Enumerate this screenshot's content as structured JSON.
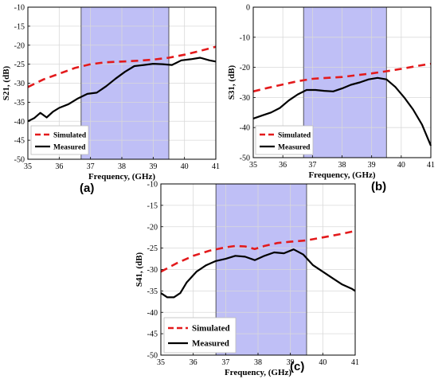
{
  "colors": {
    "simulated": "#e31a1c",
    "measured": "#000000",
    "band": "#b8b8f5",
    "grid": "#d9d9d9"
  },
  "panel_labels": [
    "(a)",
    "(b)",
    "(c)"
  ],
  "chart_data": [
    {
      "type": "line",
      "panel": "(a)",
      "title": "",
      "xlabel": "Frequency, (GHz)",
      "ylabel": "S21, (dB)",
      "xlim": [
        35,
        41
      ],
      "ylim": [
        -50,
        -10
      ],
      "xticks": [
        "35",
        "36",
        "37",
        "38",
        "39",
        "40",
        "41"
      ],
      "yticks": [
        "-10",
        "-15",
        "-20",
        "-25",
        "-30",
        "-35",
        "-40",
        "-45",
        "-50"
      ],
      "grid": true,
      "legend": "bottom-left",
      "band": [
        36.7,
        39.5
      ],
      "series": [
        {
          "name": "Simulated",
          "style": "dashed",
          "x": [
            35,
            35.5,
            36,
            36.5,
            37,
            37.5,
            38,
            38.5,
            39,
            39.5,
            40,
            40.5,
            41
          ],
          "y": [
            -31,
            -29,
            -27.5,
            -26,
            -25,
            -24.5,
            -24.3,
            -24.1,
            -23.8,
            -23.3,
            -22.5,
            -21.5,
            -20.4
          ]
        },
        {
          "name": "Measured",
          "style": "solid",
          "x": [
            35,
            35.2,
            35.4,
            35.6,
            35.8,
            36,
            36.3,
            36.6,
            36.9,
            37.2,
            37.5,
            37.8,
            38.1,
            38.4,
            38.7,
            39,
            39.3,
            39.6,
            39.9,
            40.2,
            40.5,
            40.8,
            41
          ],
          "y": [
            -40,
            -39.2,
            -37.8,
            -39,
            -37.5,
            -36.5,
            -35.5,
            -34,
            -32.8,
            -32.5,
            -30.8,
            -28.8,
            -27,
            -25.5,
            -25.2,
            -24.9,
            -25,
            -25.2,
            -24,
            -23.7,
            -23.3,
            -24,
            -24.3
          ]
        }
      ]
    },
    {
      "type": "line",
      "panel": "(b)",
      "title": "",
      "xlabel": "Frequency, (GHz)",
      "ylabel": "S31, (dB)",
      "xlim": [
        35,
        41
      ],
      "ylim": [
        -50,
        0
      ],
      "xticks": [
        "35",
        "36",
        "37",
        "38",
        "39",
        "40",
        "41"
      ],
      "yticks": [
        "0",
        "-10",
        "-20",
        "-30",
        "-40",
        "-50"
      ],
      "grid": true,
      "legend": "bottom-left",
      "band": [
        36.7,
        39.5
      ],
      "series": [
        {
          "name": "Simulated",
          "style": "dashed",
          "x": [
            35,
            35.5,
            36,
            36.5,
            37,
            37.5,
            38,
            38.5,
            39,
            39.5,
            40,
            40.5,
            41
          ],
          "y": [
            -28,
            -26.8,
            -25.7,
            -24.6,
            -23.8,
            -23.5,
            -23.2,
            -22.6,
            -22,
            -21.3,
            -20.5,
            -19.6,
            -18.8
          ]
        },
        {
          "name": "Measured",
          "style": "solid",
          "x": [
            35,
            35.3,
            35.6,
            35.9,
            36.2,
            36.5,
            36.8,
            37.1,
            37.4,
            37.7,
            38,
            38.3,
            38.6,
            38.9,
            39.2,
            39.5,
            39.8,
            40.1,
            40.4,
            40.7,
            41
          ],
          "y": [
            -37,
            -36,
            -35,
            -33.5,
            -31,
            -29,
            -27.5,
            -27.5,
            -27.8,
            -28,
            -27,
            -25.8,
            -25,
            -24,
            -23.5,
            -24,
            -26.5,
            -30,
            -34,
            -39,
            -46
          ]
        }
      ]
    },
    {
      "type": "line",
      "panel": "(c)",
      "title": "",
      "xlabel": "Frequency, (GHz)",
      "ylabel": "S41, (dB)",
      "xlim": [
        35,
        41
      ],
      "ylim": [
        -50,
        -10
      ],
      "xticks": [
        "35",
        "36",
        "37",
        "38",
        "39",
        "40",
        "41"
      ],
      "yticks": [
        "-10",
        "-15",
        "-20",
        "-25",
        "-30",
        "-35",
        "-40",
        "-45",
        "-50"
      ],
      "grid": true,
      "legend": "bottom-left",
      "band": [
        36.7,
        39.5
      ],
      "series": [
        {
          "name": "Simulated",
          "style": "dashed",
          "x": [
            35,
            35.5,
            36,
            36.5,
            37,
            37.3,
            37.6,
            37.9,
            38.2,
            38.6,
            39,
            39.5,
            40,
            40.5,
            41
          ],
          "y": [
            -30.5,
            -28.5,
            -26.8,
            -25.6,
            -24.8,
            -24.5,
            -24.6,
            -25.2,
            -24.5,
            -23.8,
            -23.5,
            -23.2,
            -22.5,
            -21.8,
            -21
          ]
        },
        {
          "name": "Measured",
          "style": "solid",
          "x": [
            35,
            35.2,
            35.4,
            35.6,
            35.8,
            36.1,
            36.4,
            36.7,
            37,
            37.3,
            37.6,
            37.9,
            38.2,
            38.5,
            38.8,
            39.1,
            39.4,
            39.7,
            40,
            40.3,
            40.6,
            40.9,
            41
          ],
          "y": [
            -35.5,
            -36.5,
            -36.5,
            -35.5,
            -33,
            -30.5,
            -29,
            -28,
            -27.5,
            -26.8,
            -27,
            -27.8,
            -26.8,
            -26,
            -26.2,
            -25.3,
            -26.5,
            -29,
            -30.5,
            -32,
            -33.5,
            -34.5,
            -35
          ]
        }
      ]
    }
  ]
}
